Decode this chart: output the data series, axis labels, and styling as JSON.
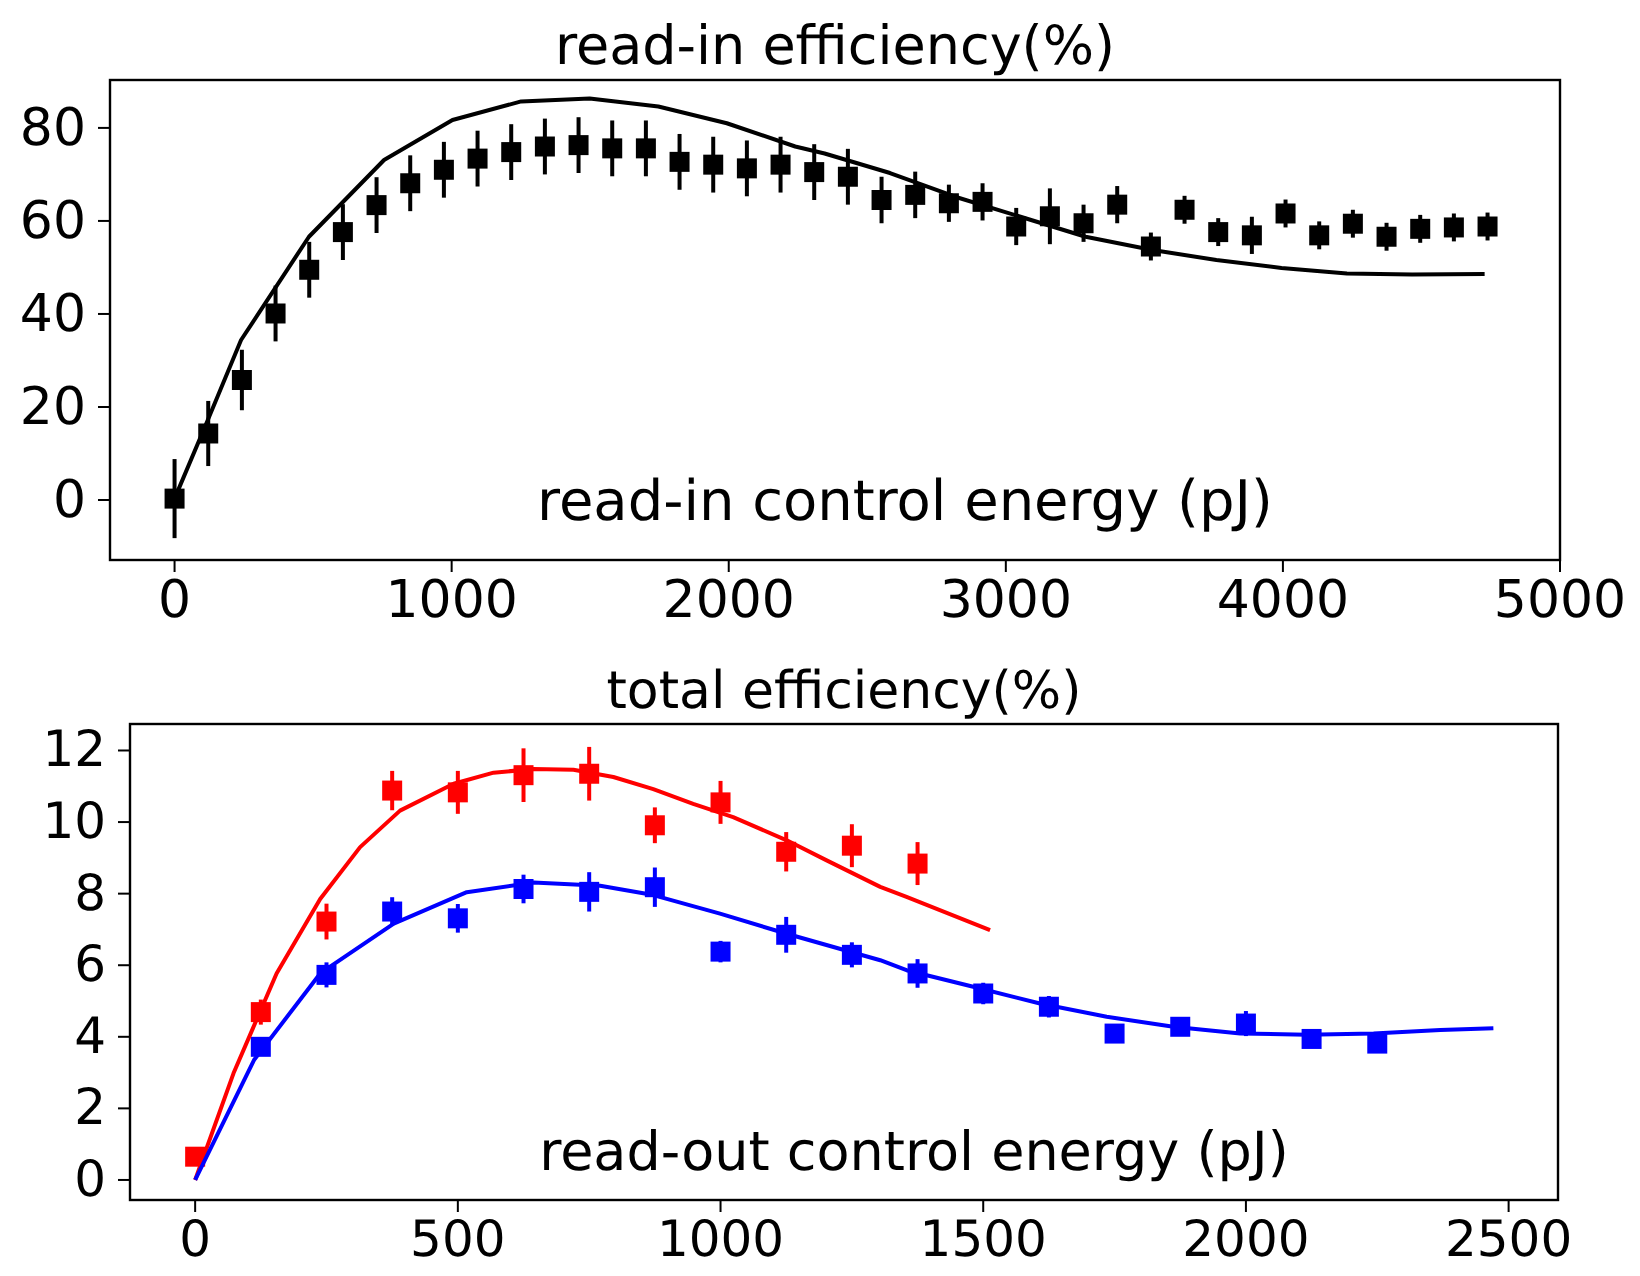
{
  "chart_data": [
    {
      "type": "scatter",
      "title": "read-in efficiency(%)",
      "xlabel": "read-in control energy (pJ)",
      "xlim": [
        -233,
        5000
      ],
      "ylim": [
        -12.9,
        90.3
      ],
      "xticks": [
        0,
        1000,
        2000,
        3000,
        4000,
        5000
      ],
      "yticks": [
        0,
        20,
        40,
        60,
        80
      ],
      "grid": false,
      "series": [
        {
          "color": "#000000",
          "marker": "square",
          "x": [
            0,
            121.5,
            243,
            364.5,
            486,
            607.5,
            729,
            850.5,
            972,
            1093.5,
            1215,
            1336.5,
            1458,
            1579.5,
            1701,
            1822.5,
            1944,
            2065.5,
            2187,
            2308.5,
            2430,
            2551.5,
            2673,
            2794.5,
            2916,
            3037.5,
            3159,
            3280.5,
            3402,
            3523.5,
            3645,
            3766.5,
            3888,
            4009.5,
            4131,
            4252.5,
            4374,
            4495.5,
            4617,
            4738.5
          ],
          "values": [
            0.3,
            14.3,
            25.8,
            40.1,
            49.5,
            57.6,
            63.4,
            68.1,
            71,
            73.4,
            74.8,
            76,
            76.3,
            75.6,
            75.6,
            72.7,
            72.1,
            71.3,
            72.1,
            70.5,
            69.5,
            64.5,
            65.6,
            63.8,
            64.1,
            58.8,
            61,
            59.5,
            63.5,
            54.5,
            62.4,
            57.6,
            56.9,
            61.6,
            56.9,
            59.4,
            56.6,
            58.3,
            58.6,
            58.8
          ],
          "errors": [
            8.5,
            7,
            6.5,
            6,
            6,
            6,
            6,
            6,
            6,
            6,
            6,
            6,
            6,
            6,
            6,
            6,
            6,
            6,
            6,
            6,
            6,
            5,
            5,
            4,
            4,
            4,
            6,
            4,
            4,
            3,
            3,
            3,
            4,
            3,
            3,
            3,
            3,
            3,
            3,
            3
          ]
        },
        {
          "type": "line",
          "marker": "none",
          "color": "#000000",
          "x": [
            0,
            120,
            240,
            485,
            756,
            1003,
            1251,
            1498,
            1746,
            1993,
            2240,
            2346,
            2582,
            2817,
            3053,
            3288,
            3524,
            3760,
            3995,
            4231,
            4466,
            4728
          ],
          "values": [
            0.3,
            17.2,
            34.4,
            56.6,
            73.1,
            81.7,
            85.7,
            86.3,
            84.6,
            81,
            76,
            74.5,
            70.3,
            65.2,
            60.9,
            56.6,
            53.8,
            51.6,
            49.9,
            48.7,
            48.5,
            48.6
          ]
        }
      ]
    },
    {
      "type": "scatter",
      "title": "total efficiency(%)",
      "xlabel": "read-out control energy (pJ)",
      "xlim": [
        -124,
        2594
      ],
      "ylim": [
        -0.56,
        12.74
      ],
      "xticks": [
        0,
        500,
        1000,
        1500,
        2000,
        2500
      ],
      "yticks": [
        0,
        2,
        4,
        6,
        8,
        10,
        12
      ],
      "grid": false,
      "series": [
        {
          "color": "#ff0000",
          "marker": "square",
          "x": [
            0,
            125,
            250,
            375,
            500,
            625,
            750,
            875,
            1000,
            1125,
            1250,
            1375
          ],
          "values": [
            0.65,
            4.69,
            7.22,
            10.88,
            10.83,
            11.31,
            11.35,
            9.91,
            10.55,
            9.17,
            9.34,
            8.84
          ],
          "errors": [
            0.15,
            0.35,
            0.5,
            0.55,
            0.6,
            0.75,
            0.75,
            0.5,
            0.6,
            0.55,
            0.6,
            0.6
          ]
        },
        {
          "color": "#0000ff",
          "marker": "square",
          "x": [
            125,
            250,
            375,
            500,
            625,
            750,
            875,
            1000,
            1125,
            1250,
            1375,
            1500,
            1625,
            1750,
            1875,
            2000,
            2125,
            2250
          ],
          "values": [
            3.72,
            5.73,
            7.5,
            7.31,
            8.13,
            8.05,
            8.18,
            6.38,
            6.85,
            6.29,
            5.77,
            5.21,
            4.84,
            4.09,
            4.28,
            4.37,
            3.94,
            3.81
          ],
          "errors": [
            0.25,
            0.35,
            0.4,
            0.4,
            0.4,
            0.55,
            0.55,
            0.3,
            0.5,
            0.35,
            0.4,
            0.3,
            0.3,
            0.15,
            0.2,
            0.35,
            0.2,
            0.25
          ]
        },
        {
          "type": "line",
          "marker": "none",
          "color": "#ff0000",
          "x": [
            0,
            73,
            155,
            238,
            314,
            390,
            492,
            568,
            644,
            720,
            796,
            872,
            948,
            1024,
            1126,
            1202,
            1304,
            1354,
            1513
          ],
          "values": [
            0,
            2.98,
            5.77,
            7.85,
            9.3,
            10.32,
            11.07,
            11.38,
            11.48,
            11.46,
            11.26,
            10.92,
            10.51,
            10.14,
            9.49,
            8.93,
            8.19,
            7.91,
            6.98
          ]
        },
        {
          "type": "line",
          "marker": "none",
          "color": "#0000ff",
          "x": [
            0,
            112,
            238,
            378,
            517,
            644,
            771,
            872,
            999,
            1126,
            1304,
            1354,
            1481,
            1608,
            1735,
            1862,
            1989,
            2116,
            2243,
            2370,
            2471
          ],
          "values": [
            0,
            3.35,
            5.77,
            7.16,
            8.04,
            8.31,
            8.22,
            7.96,
            7.44,
            6.88,
            6.14,
            5.86,
            5.4,
            4.93,
            4.56,
            4.28,
            4.09,
            4.06,
            4.09,
            4.19,
            4.24
          ]
        }
      ]
    }
  ]
}
